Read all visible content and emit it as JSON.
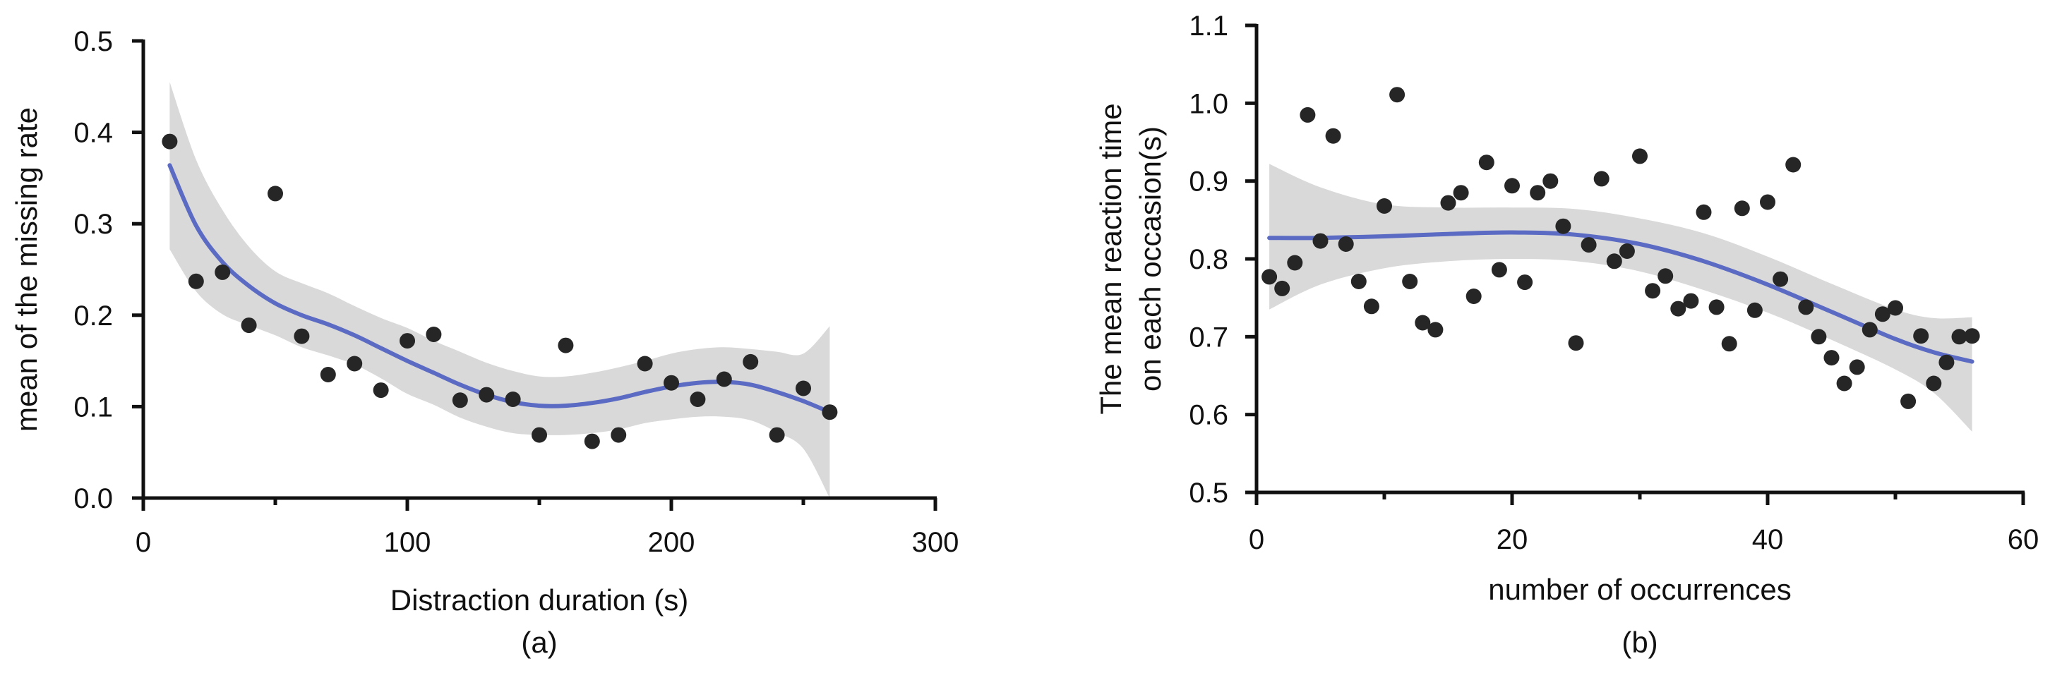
{
  "colors": {
    "points": "#262626",
    "fit_line": "#5b6bc4",
    "ci_band": "#d9d9d9",
    "axis": "#111111"
  },
  "chart_data": [
    {
      "type": "scatter",
      "panel_label": "(a)",
      "title": "",
      "xlabel": "Distraction duration (s)",
      "ylabel": "mean of the missing rate",
      "xlim": [
        0,
        300
      ],
      "ylim": [
        0.0,
        0.5
      ],
      "xticks": [
        0,
        100,
        200,
        300
      ],
      "xtick_labels": [
        "0",
        "100",
        "200",
        "300"
      ],
      "xminor": [
        50,
        150,
        250
      ],
      "yticks": [
        0.0,
        0.1,
        0.2,
        0.3,
        0.4,
        0.5
      ],
      "ytick_labels": [
        "0.0",
        "0.1",
        "0.2",
        "0.3",
        "0.4",
        "0.5"
      ],
      "points": [
        [
          10,
          0.39
        ],
        [
          20,
          0.237
        ],
        [
          30,
          0.247
        ],
        [
          40,
          0.189
        ],
        [
          50,
          0.333
        ],
        [
          60,
          0.177
        ],
        [
          70,
          0.135
        ],
        [
          80,
          0.147
        ],
        [
          90,
          0.118
        ],
        [
          100,
          0.172
        ],
        [
          110,
          0.179
        ],
        [
          120,
          0.107
        ],
        [
          130,
          0.113
        ],
        [
          140,
          0.108
        ],
        [
          150,
          0.069
        ],
        [
          160,
          0.167
        ],
        [
          170,
          0.062
        ],
        [
          180,
          0.069
        ],
        [
          190,
          0.147
        ],
        [
          200,
          0.126
        ],
        [
          210,
          0.108
        ],
        [
          220,
          0.13
        ],
        [
          230,
          0.149
        ],
        [
          240,
          0.069
        ],
        [
          250,
          0.12
        ],
        [
          260,
          0.094
        ]
      ],
      "fit": {
        "x": [
          10,
          20,
          30,
          40,
          50,
          60,
          70,
          80,
          90,
          100,
          110,
          120,
          130,
          140,
          150,
          160,
          170,
          180,
          190,
          200,
          210,
          220,
          230,
          240,
          250,
          260
        ],
        "y": [
          0.364,
          0.298,
          0.258,
          0.232,
          0.213,
          0.2,
          0.19,
          0.178,
          0.164,
          0.15,
          0.137,
          0.124,
          0.113,
          0.105,
          0.101,
          0.101,
          0.104,
          0.109,
          0.116,
          0.122,
          0.126,
          0.127,
          0.124,
          0.116,
          0.106,
          0.094
        ],
        "upper": [
          0.455,
          0.37,
          0.315,
          0.275,
          0.248,
          0.235,
          0.224,
          0.21,
          0.197,
          0.186,
          0.172,
          0.16,
          0.148,
          0.139,
          0.133,
          0.133,
          0.137,
          0.143,
          0.15,
          0.158,
          0.163,
          0.165,
          0.163,
          0.16,
          0.158,
          0.188
        ],
        "lower": [
          0.272,
          0.226,
          0.201,
          0.189,
          0.178,
          0.165,
          0.156,
          0.146,
          0.131,
          0.114,
          0.102,
          0.088,
          0.078,
          0.071,
          0.069,
          0.069,
          0.071,
          0.075,
          0.082,
          0.086,
          0.089,
          0.089,
          0.085,
          0.072,
          0.054,
          0.0
        ]
      }
    },
    {
      "type": "scatter",
      "panel_label": "(b)",
      "title": "",
      "xlabel": "number of occurrences",
      "ylabel_lines": [
        "The mean reaction time",
        "on each occasion(s)"
      ],
      "xlim": [
        0,
        60
      ],
      "ylim": [
        0.5,
        1.1
      ],
      "xticks": [
        0,
        20,
        40,
        60
      ],
      "xtick_labels": [
        "0",
        "20",
        "40",
        "60"
      ],
      "xminor": [
        10,
        30,
        50
      ],
      "yticks": [
        0.5,
        0.6,
        0.7,
        0.8,
        0.9,
        1.0,
        1.1
      ],
      "ytick_labels": [
        "0.5",
        "0.6",
        "0.7",
        "0.8",
        "0.9",
        "1.0",
        "1.1"
      ],
      "points": [
        [
          1,
          0.777
        ],
        [
          2,
          0.762
        ],
        [
          3,
          0.795
        ],
        [
          4,
          0.985
        ],
        [
          5,
          0.823
        ],
        [
          6,
          0.958
        ],
        [
          7,
          0.819
        ],
        [
          8,
          0.771
        ],
        [
          9,
          0.739
        ],
        [
          10,
          0.868
        ],
        [
          11,
          1.011
        ],
        [
          12,
          0.771
        ],
        [
          13,
          0.718
        ],
        [
          14,
          0.709
        ],
        [
          15,
          0.872
        ],
        [
          16,
          0.885
        ],
        [
          17,
          0.752
        ],
        [
          18,
          0.924
        ],
        [
          19,
          0.786
        ],
        [
          20,
          0.894
        ],
        [
          21,
          0.77
        ],
        [
          22,
          0.885
        ],
        [
          23,
          0.9
        ],
        [
          24,
          0.842
        ],
        [
          25,
          0.692
        ],
        [
          26,
          0.818
        ],
        [
          27,
          0.903
        ],
        [
          28,
          0.797
        ],
        [
          29,
          0.81
        ],
        [
          30,
          0.932
        ],
        [
          31,
          0.759
        ],
        [
          32,
          0.778
        ],
        [
          33,
          0.736
        ],
        [
          34,
          0.746
        ],
        [
          35,
          0.86
        ],
        [
          36,
          0.738
        ],
        [
          37,
          0.691
        ],
        [
          38,
          0.865
        ],
        [
          39,
          0.734
        ],
        [
          40,
          0.873
        ],
        [
          41,
          0.774
        ],
        [
          42,
          0.921
        ],
        [
          43,
          0.738
        ],
        [
          44,
          0.7
        ],
        [
          45,
          0.673
        ],
        [
          46,
          0.64
        ],
        [
          47,
          0.661
        ],
        [
          48,
          0.709
        ],
        [
          49,
          0.729
        ],
        [
          50,
          0.737
        ],
        [
          51,
          0.617
        ],
        [
          52,
          0.701
        ],
        [
          53,
          0.64
        ],
        [
          54,
          0.667
        ],
        [
          55,
          0.7
        ],
        [
          56,
          0.701
        ]
      ],
      "fit": {
        "x": [
          1,
          5,
          10,
          15,
          20,
          25,
          30,
          35,
          40,
          45,
          50,
          53,
          56
        ],
        "y": [
          0.827,
          0.827,
          0.829,
          0.832,
          0.834,
          0.831,
          0.819,
          0.797,
          0.767,
          0.732,
          0.697,
          0.68,
          0.668
        ],
        "upper": [
          0.922,
          0.892,
          0.87,
          0.866,
          0.866,
          0.864,
          0.852,
          0.833,
          0.803,
          0.768,
          0.735,
          0.724,
          0.725
        ],
        "lower": [
          0.735,
          0.767,
          0.788,
          0.797,
          0.8,
          0.797,
          0.784,
          0.76,
          0.731,
          0.696,
          0.658,
          0.628,
          0.578
        ]
      }
    }
  ]
}
